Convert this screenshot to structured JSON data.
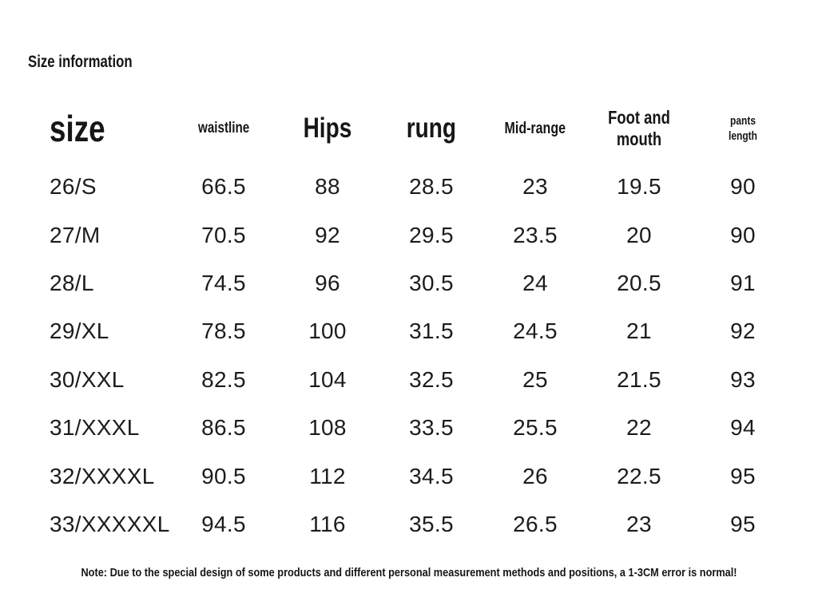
{
  "page": {
    "title": "Size information",
    "note": "Note: Due to the special design of some products and different personal measurement methods and positions, a 1-3CM error is normal!"
  },
  "table": {
    "columns": [
      "size",
      "waistline",
      "Hips",
      "rung",
      "Mid-range",
      "Foot and mouth",
      "pants length"
    ],
    "rows": [
      [
        "26/S",
        "66.5",
        "88",
        "28.5",
        "23",
        "19.5",
        "90"
      ],
      [
        "27/M",
        "70.5",
        "92",
        "29.5",
        "23.5",
        "20",
        "90"
      ],
      [
        "28/L",
        "74.5",
        "96",
        "30.5",
        "24",
        "20.5",
        "91"
      ],
      [
        "29/XL",
        "78.5",
        "100",
        "31.5",
        "24.5",
        "21",
        "92"
      ],
      [
        "30/XXL",
        "82.5",
        "104",
        "32.5",
        "25",
        "21.5",
        "93"
      ],
      [
        "31/XXXL",
        "86.5",
        "108",
        "33.5",
        "25.5",
        "22",
        "94"
      ],
      [
        "32/XXXXL",
        "90.5",
        "112",
        "34.5",
        "26",
        "22.5",
        "95"
      ],
      [
        "33/XXXXXL",
        "94.5",
        "116",
        "35.5",
        "26.5",
        "23",
        "95"
      ]
    ]
  },
  "colors": {
    "background": "#ffffff",
    "text": "#161616"
  }
}
